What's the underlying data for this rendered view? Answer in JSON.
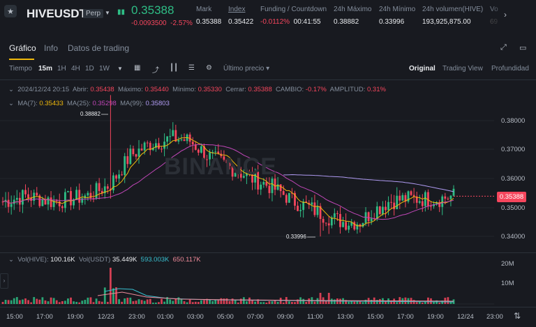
{
  "header": {
    "symbol": "HIVEUSDT",
    "badge": "Perp",
    "last_price": "0.35388",
    "change": "-0.0093500",
    "change_pct": "-2.57%",
    "stats": [
      {
        "label": "Mark",
        "value": "0.35388"
      },
      {
        "label": "Index",
        "value": "0.35422"
      },
      {
        "label": "Funding / Countdown",
        "value": "-0.0112%",
        "value2": "00:41:55"
      },
      {
        "label": "24h Máximo",
        "value": "0.38882"
      },
      {
        "label": "24h Mínimo",
        "value": "0.33996"
      },
      {
        "label": "24h volumen(HIVE)",
        "value": "193,925,875.00"
      },
      {
        "label": "Vo",
        "value": "69"
      }
    ],
    "icons": {
      "star": "star-icon",
      "next": "chevron-right-icon"
    }
  },
  "tabs": {
    "items": [
      "Gráfico",
      "Info",
      "Datos de trading"
    ],
    "active": "Gráfico"
  },
  "toolbar": {
    "tiempo": "Tiempo",
    "intervals": [
      "15m",
      "1H",
      "4H",
      "1D",
      "1W"
    ],
    "active_interval": "15m",
    "price_type": "Último precio",
    "views": [
      "Original",
      "Trading View",
      "Profundidad"
    ],
    "active_view": "Original"
  },
  "ohlc": {
    "date": "2024/12/24 20:15",
    "open_label": "Abrir:",
    "open": "0.35438",
    "high_label": "Máximo:",
    "high": "0.35440",
    "low_label": "Mínimo:",
    "low": "0.35330",
    "close_label": "Cerrar:",
    "close": "0.35388",
    "change_label": "CAMBIO:",
    "change": "-0.17%",
    "amp_label": "AMPLITUD:",
    "amp": "0.31%"
  },
  "ma": {
    "ma7_label": "MA(7):",
    "ma7": "0.35433",
    "ma25_label": "MA(25):",
    "ma25": "0.35298",
    "ma99_label": "MA(99):",
    "ma99": "0.35803"
  },
  "volume": {
    "label": "Vol(HIVE):",
    "hive": "100.16K",
    "usdt_label": "Vol(USDT)",
    "usdt": "35.449K",
    "v1": "593.003K",
    "v2": "650.117K"
  },
  "watermark": "BINANCE",
  "annotations": {
    "high": "0.38882",
    "low": "0.33996"
  },
  "last_price_tag": "0.35388",
  "colors": {
    "up": "#2ebd85",
    "down": "#f6465d",
    "ma7": "#f0b90b",
    "ma25": "#c247b9",
    "ma99": "#b19cf4",
    "accent": "#f0b90b"
  },
  "chart_data": {
    "type": "candlestick",
    "price_axis": [
      "0.38000",
      "0.37000",
      "0.36000",
      "0.35388",
      "0.35000",
      "0.34000"
    ],
    "volume_axis": [
      "20M",
      "10M"
    ],
    "time_axis": [
      "15:00",
      "17:00",
      "19:00",
      "12/23",
      "23:00",
      "01:00",
      "03:00",
      "05:00",
      "07:00",
      "09:00",
      "11:00",
      "13:00",
      "15:00",
      "17:00",
      "19:00",
      "12/24",
      "23:00"
    ],
    "high": 0.38882,
    "low": 0.33996,
    "ma99_last": 0.35803
  }
}
